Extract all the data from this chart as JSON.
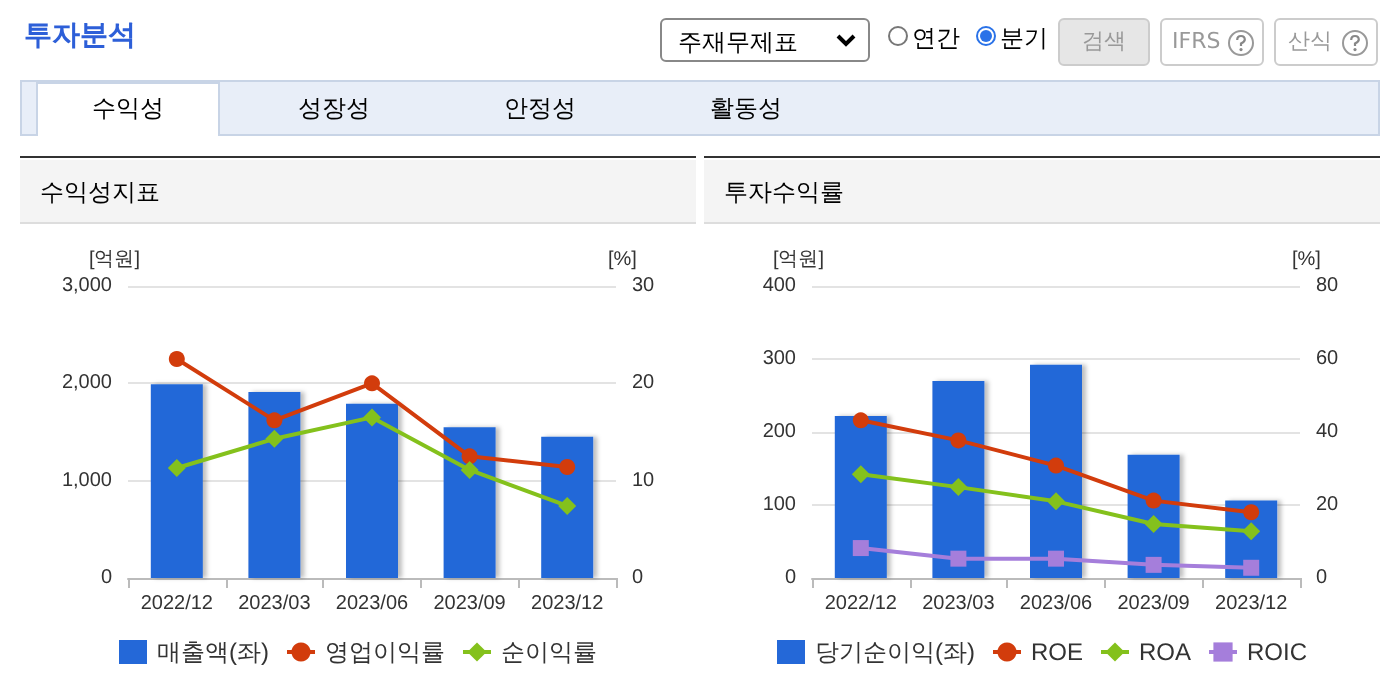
{
  "chart_data": [
    {
      "type": "bar",
      "title": "수익성지표",
      "annotations": [
        "투자분석",
        "주재무제표",
        "연간",
        "분기",
        "검색",
        "IFRS",
        "산식",
        "수익성",
        "성장성",
        "안정성",
        "활동성"
      ],
      "categories": [
        "2022/12",
        "2023/03",
        "2023/06",
        "2023/09",
        "2023/12"
      ],
      "ylabel": "[억원]",
      "y2label": "[%]",
      "ylim": [
        0,
        3000
      ],
      "yticks": [
        0,
        {
          "value": 1000,
          "label": "1,000"
        },
        {
          "value": 2000,
          "label": "2,000"
        },
        {
          "value": 3000,
          "label": "3,000"
        }
      ],
      "y2lim": [
        0,
        30
      ],
      "y2ticks": [
        0,
        10,
        20,
        30
      ],
      "grid": "y",
      "legend": "bottom",
      "series": [
        {
          "name": "매출액(좌)",
          "color": "#2468d8",
          "values": [
            1990,
            1910,
            1790,
            1550,
            1450
          ]
        },
        {
          "name": "영업이익률",
          "type": "line",
          "axis": "y2",
          "marker": "circle",
          "color": "#d23c0c",
          "values": [
            22.5,
            16.2,
            20.0,
            12.5,
            11.4
          ]
        },
        {
          "name": "순이익률",
          "type": "line",
          "axis": "y2",
          "marker": "diamond",
          "color": "#84c11c",
          "values": [
            11.3,
            14.3,
            16.5,
            11.1,
            7.4
          ]
        }
      ]
    },
    {
      "type": "bar",
      "title": "투자수익률",
      "categories": [
        "2022/12",
        "2023/03",
        "2023/06",
        "2023/09",
        "2023/12"
      ],
      "ylabel": "[억원]",
      "y2label": "[%]",
      "ylim": [
        0,
        400
      ],
      "yticks": [
        0,
        100,
        200,
        300,
        400
      ],
      "y2lim": [
        0,
        80
      ],
      "y2ticks": [
        0,
        20,
        40,
        60,
        80
      ],
      "grid": "y",
      "legend": "bottom",
      "series": [
        {
          "name": "당기순이익(좌)",
          "color": "#2468d8",
          "values": [
            222,
            270,
            292,
            169,
            106
          ]
        },
        {
          "name": "ROE",
          "type": "line",
          "axis": "y2",
          "marker": "circle",
          "color": "#d23c0c",
          "values": [
            43.2,
            37.7,
            30.8,
            21.2,
            18.0
          ]
        },
        {
          "name": "ROA",
          "type": "line",
          "axis": "y2",
          "marker": "diamond",
          "color": "#84c11c",
          "values": [
            28.4,
            24.9,
            21.0,
            14.8,
            12.8
          ]
        },
        {
          "name": "ROIC",
          "type": "line",
          "axis": "y2",
          "marker": "square",
          "color": "#a57edb",
          "values": [
            8.2,
            5.3,
            5.3,
            3.6,
            2.8
          ]
        }
      ]
    }
  ]
}
